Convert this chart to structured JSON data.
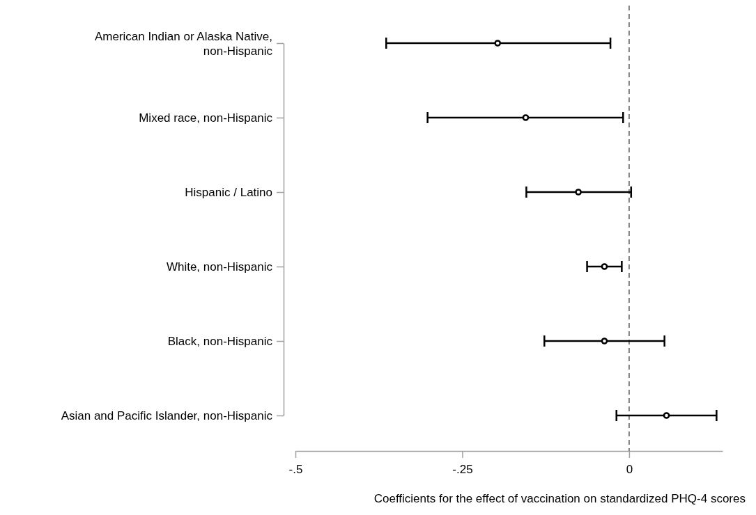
{
  "chart_data": {
    "type": "scatter",
    "orientation": "horizontal",
    "xlabel": "Coefficients for the effect of vaccination on standardized PHQ-4 scores",
    "categories": [
      "American Indian or Alaska Native,\nnon-Hispanic",
      "Mixed race, non-Hispanic",
      "Hispanic / Latino",
      "White, non-Hispanic",
      "Black, non-Hispanic",
      "Asian and Pacific Islander, non-Hispanic"
    ],
    "series": [
      {
        "color": "#000000",
        "values": [
          -0.197,
          -0.155,
          -0.076,
          -0.037,
          -0.037,
          0.056
        ],
        "errors": [
          [
            -0.364,
            -0.028
          ],
          [
            -0.302,
            -0.009
          ],
          [
            -0.154,
            0.003
          ],
          [
            -0.063,
            -0.011
          ],
          [
            -0.127,
            0.053
          ],
          [
            -0.019,
            0.131
          ]
        ]
      }
    ],
    "xlim": [
      -0.5,
      0.14
    ],
    "xticks": [
      {
        "value": -0.5,
        "label": "-.5"
      },
      {
        "value": -0.25,
        "label": "-.25"
      },
      {
        "value": 0,
        "label": "0"
      }
    ],
    "ref_lines": [
      {
        "axis": "x",
        "value": 0,
        "color": "#808080",
        "line_style": "dashed"
      }
    ],
    "marker": "circle",
    "grid": false
  }
}
